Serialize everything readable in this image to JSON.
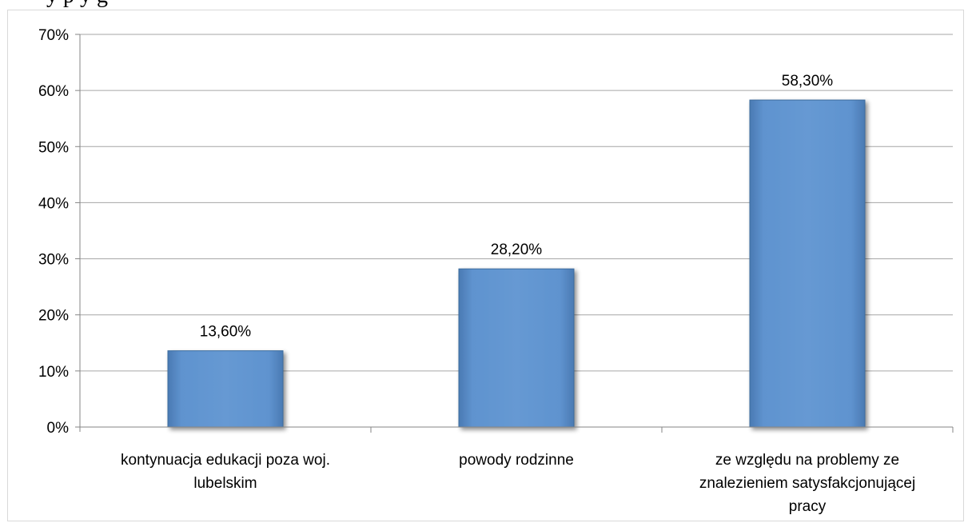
{
  "header": {
    "partial_text": "y p            y                    g"
  },
  "chart_data": {
    "type": "bar",
    "categories": [
      [
        "kontynuacja edukacji poza woj.",
        "lubelskim"
      ],
      [
        "powody rodzinne"
      ],
      [
        "ze względu na problemy ze",
        "znalezieniem satysfakcjonującej",
        "pracy"
      ]
    ],
    "values": [
      13.6,
      28.2,
      58.3
    ],
    "data_labels": [
      "13,60%",
      "28,20%",
      "58,30%"
    ],
    "ylim": [
      0,
      70
    ],
    "yticks": [
      0,
      10,
      20,
      30,
      40,
      50,
      60,
      70
    ],
    "ytick_labels": [
      "0%",
      "10%",
      "20%",
      "30%",
      "40%",
      "50%",
      "60%",
      "70%"
    ],
    "grid": true,
    "legend": false,
    "colors": {
      "bar": "#5b8fc9",
      "bar_edge": "#3e6d9e",
      "grid": "#a6a6a6",
      "axis": "#868686"
    }
  }
}
